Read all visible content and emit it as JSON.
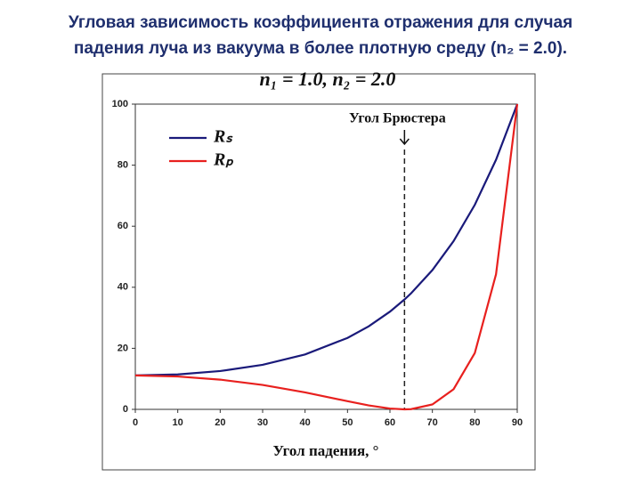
{
  "title_lines": [
    "Угловая зависимость коэффициента отражения для случая",
    "падения луча из вакуума в более плотную среду (n₂ = 2.0)."
  ],
  "chart_data": {
    "type": "line",
    "subtitle": "n₁ = 1.0,  n₂ = 2.0",
    "x_label": "Угол падения, °",
    "x": [
      0,
      10,
      20,
      30,
      40,
      50,
      55,
      60,
      63.43,
      65,
      70,
      75,
      80,
      85,
      90
    ],
    "series": [
      {
        "name": "Rₛ",
        "color": "#1a1a7a",
        "values": [
          11.11,
          11.45,
          12.55,
          14.59,
          17.98,
          23.4,
          27.21,
          32.01,
          36.0,
          38.04,
          45.62,
          55.13,
          67.01,
          81.77,
          100
        ]
      },
      {
        "name": "Rₚ",
        "color": "#e8201e",
        "values": [
          11.11,
          10.77,
          9.74,
          8.0,
          5.57,
          2.68,
          1.3,
          0.27,
          0,
          0.07,
          1.61,
          6.6,
          18.45,
          44.26,
          100
        ]
      }
    ],
    "annotations": [
      {
        "text": "Угол Брюстера",
        "x": 63.43
      }
    ],
    "xlim": [
      0,
      90
    ],
    "xticks": [
      0,
      10,
      20,
      30,
      40,
      50,
      60,
      70,
      80,
      90
    ],
    "ylim": [
      0,
      100
    ],
    "yticks": [
      0,
      20,
      40,
      60,
      80,
      100
    ],
    "grid": false,
    "legend": "upper left"
  }
}
